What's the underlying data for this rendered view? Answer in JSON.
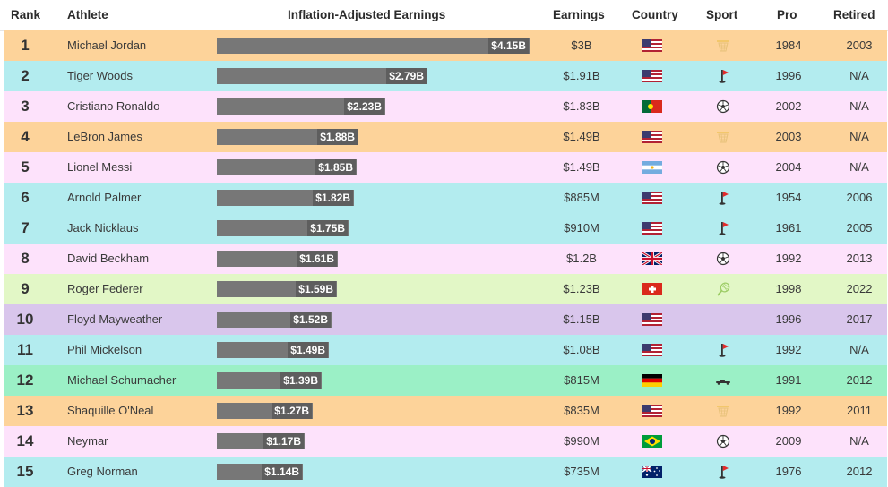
{
  "headers": {
    "rank": "Rank",
    "athlete": "Athlete",
    "adjusted": "Inflation-Adjusted Earnings",
    "earnings": "Earnings",
    "country": "Country",
    "sport": "Sport",
    "pro": "Pro",
    "retired": "Retired"
  },
  "colors": {
    "orange": "#fdd39a",
    "cyan": "#b3ecef",
    "pink": "#fde2fb",
    "lime": "#e2f7c6",
    "lavender": "#d9c6ec",
    "mint": "#9bf0c6",
    "bar": "#777777"
  },
  "chart_data": {
    "type": "bar",
    "orientation": "horizontal",
    "unit": "billions USD",
    "xlim": [
      0,
      4.15
    ],
    "categories": [
      "Michael Jordan",
      "Tiger Woods",
      "Cristiano Ronaldo",
      "LeBron James",
      "Lionel Messi",
      "Arnold Palmer",
      "Jack Nicklaus",
      "David Beckham",
      "Roger Federer",
      "Floyd Mayweather",
      "Phil Mickelson",
      "Michael Schumacher",
      "Shaquille O'Neal",
      "Neymar",
      "Greg Norman"
    ],
    "values": [
      4.15,
      2.79,
      2.23,
      1.88,
      1.85,
      1.82,
      1.75,
      1.61,
      1.59,
      1.52,
      1.49,
      1.39,
      1.27,
      1.17,
      1.14
    ]
  },
  "rows": [
    {
      "rank": "1",
      "athlete": "Michael Jordan",
      "adjusted": "$4.15B",
      "value": 4.15,
      "earnings": "$3B",
      "flag": "usa",
      "sport": "basketball-icon",
      "pro": "1984",
      "retired": "2003",
      "color": "orange"
    },
    {
      "rank": "2",
      "athlete": "Tiger Woods",
      "adjusted": "$2.79B",
      "value": 2.79,
      "earnings": "$1.91B",
      "flag": "usa",
      "sport": "golf-icon",
      "pro": "1996",
      "retired": "N/A",
      "color": "cyan"
    },
    {
      "rank": "3",
      "athlete": "Cristiano Ronaldo",
      "adjusted": "$2.23B",
      "value": 2.23,
      "earnings": "$1.83B",
      "flag": "portugal",
      "sport": "soccer-icon",
      "pro": "2002",
      "retired": "N/A",
      "color": "pink"
    },
    {
      "rank": "4",
      "athlete": "LeBron James",
      "adjusted": "$1.88B",
      "value": 1.88,
      "earnings": "$1.49B",
      "flag": "usa",
      "sport": "basketball-icon",
      "pro": "2003",
      "retired": "N/A",
      "color": "orange"
    },
    {
      "rank": "5",
      "athlete": "Lionel Messi",
      "adjusted": "$1.85B",
      "value": 1.85,
      "earnings": "$1.49B",
      "flag": "argentina",
      "sport": "soccer-icon",
      "pro": "2004",
      "retired": "N/A",
      "color": "pink"
    },
    {
      "rank": "6",
      "athlete": "Arnold Palmer",
      "adjusted": "$1.82B",
      "value": 1.82,
      "earnings": "$885M",
      "flag": "usa",
      "sport": "golf-icon",
      "pro": "1954",
      "retired": "2006",
      "color": "cyan"
    },
    {
      "rank": "7",
      "athlete": "Jack Nicklaus",
      "adjusted": "$1.75B",
      "value": 1.75,
      "earnings": "$910M",
      "flag": "usa",
      "sport": "golf-icon",
      "pro": "1961",
      "retired": "2005",
      "color": "cyan"
    },
    {
      "rank": "8",
      "athlete": "David Beckham",
      "adjusted": "$1.61B",
      "value": 1.61,
      "earnings": "$1.2B",
      "flag": "uk",
      "sport": "soccer-icon",
      "pro": "1992",
      "retired": "2013",
      "color": "pink"
    },
    {
      "rank": "9",
      "athlete": "Roger Federer",
      "adjusted": "$1.59B",
      "value": 1.59,
      "earnings": "$1.23B",
      "flag": "switzerland",
      "sport": "tennis-icon",
      "pro": "1998",
      "retired": "2022",
      "color": "lime"
    },
    {
      "rank": "10",
      "athlete": "Floyd Mayweather",
      "adjusted": "$1.52B",
      "value": 1.52,
      "earnings": "$1.15B",
      "flag": "usa",
      "sport": "none",
      "pro": "1996",
      "retired": "2017",
      "color": "lavender"
    },
    {
      "rank": "11",
      "athlete": "Phil Mickelson",
      "adjusted": "$1.49B",
      "value": 1.49,
      "earnings": "$1.08B",
      "flag": "usa",
      "sport": "golf-icon",
      "pro": "1992",
      "retired": "N/A",
      "color": "cyan"
    },
    {
      "rank": "12",
      "athlete": "Michael Schumacher",
      "adjusted": "$1.39B",
      "value": 1.39,
      "earnings": "$815M",
      "flag": "germany",
      "sport": "racecar-icon",
      "pro": "1991",
      "retired": "2012",
      "color": "mint"
    },
    {
      "rank": "13",
      "athlete": "Shaquille O'Neal",
      "adjusted": "$1.27B",
      "value": 1.27,
      "earnings": "$835M",
      "flag": "usa",
      "sport": "basketball-icon",
      "pro": "1992",
      "retired": "2011",
      "color": "orange"
    },
    {
      "rank": "14",
      "athlete": "Neymar",
      "adjusted": "$1.17B",
      "value": 1.17,
      "earnings": "$990M",
      "flag": "brazil",
      "sport": "soccer-icon",
      "pro": "2009",
      "retired": "N/A",
      "color": "pink"
    },
    {
      "rank": "15",
      "athlete": "Greg Norman",
      "adjusted": "$1.14B",
      "value": 1.14,
      "earnings": "$735M",
      "flag": "australia",
      "sport": "golf-icon",
      "pro": "1976",
      "retired": "2012",
      "color": "cyan"
    }
  ]
}
